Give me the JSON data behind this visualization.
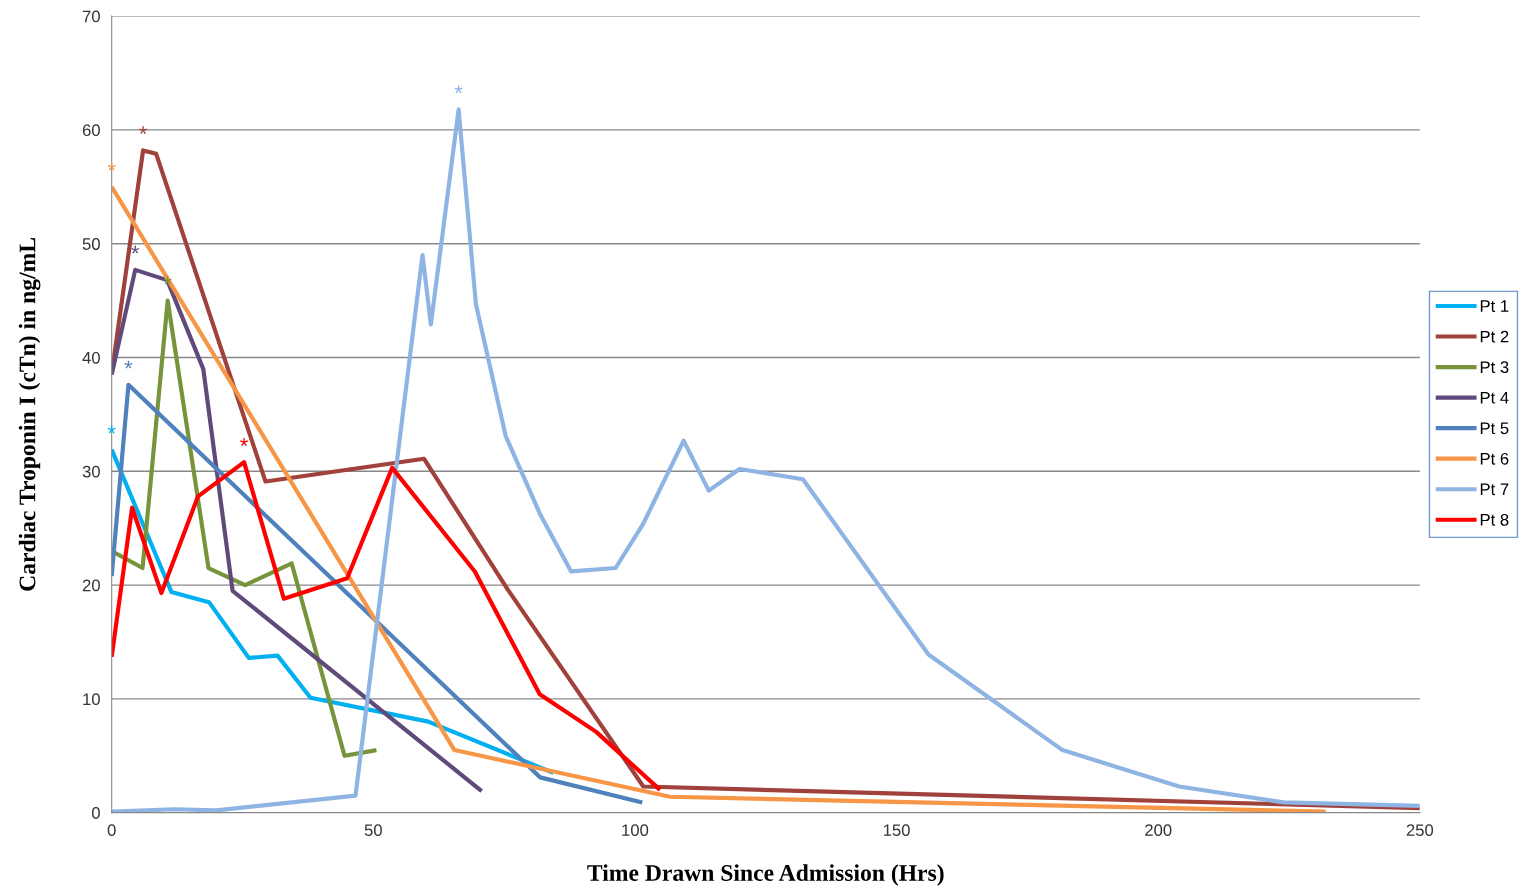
{
  "chart_data": {
    "type": "line",
    "xlabel": "Time Drawn Since Admission (Hrs)",
    "ylabel": "Cardiac Troponin I (cTn) in ng/mL",
    "xlim": [
      0,
      250
    ],
    "xticks": [
      0,
      50,
      100,
      150,
      200,
      250
    ],
    "ylim": [
      0,
      70
    ],
    "yticks": [
      0,
      10,
      20,
      30,
      40,
      50,
      60,
      70
    ],
    "grid": "y",
    "legend": "right",
    "marker": "none",
    "line_style": "solid",
    "series": [
      {
        "name": "Pt 1",
        "color": "#00b0f0",
        "x": [
          0,
          11.4,
          18.6,
          26.2,
          31.7,
          38,
          60.5,
          84.4
        ],
        "values": [
          31.9,
          19.4,
          18.5,
          13.6,
          13.8,
          10.1,
          8.0,
          3.5
        ]
      },
      {
        "name": "Pt 2",
        "color": "#a0413c",
        "x": [
          0,
          6.0,
          8.5,
          29.4,
          59.7,
          75.7,
          101.6,
          250
        ],
        "values": [
          38.6,
          58.2,
          57.9,
          29.1,
          31.1,
          19.6,
          2.3,
          0.4
        ]
      },
      {
        "name": "Pt 3",
        "color": "#77933c",
        "x": [
          0,
          5.9,
          10.7,
          18.5,
          25.5,
          34.4,
          44.5,
          50.6
        ],
        "values": [
          23.0,
          21.5,
          45.0,
          21.5,
          20.0,
          21.9,
          5.0,
          5.5
        ]
      },
      {
        "name": "Pt 4",
        "color": "#604a7b",
        "x": [
          0,
          4.5,
          10.6,
          17.5,
          23.1,
          70.7
        ],
        "values": [
          38.5,
          47.7,
          46.8,
          39.0,
          19.5,
          1.9
        ]
      },
      {
        "name": "Pt 5",
        "color": "#4f81bd",
        "x": [
          0,
          3.2,
          81.9,
          101.4
        ],
        "values": [
          20.8,
          37.6,
          3.1,
          0.9
        ]
      },
      {
        "name": "Pt 6",
        "color": "#f79646",
        "x": [
          0,
          65.5,
          106.7,
          232
        ],
        "values": [
          55.0,
          5.5,
          1.4,
          0.1
        ]
      },
      {
        "name": "Pt 7",
        "color": "#8eb4e3",
        "x": [
          0,
          12,
          20,
          46.6,
          59.4,
          61,
          66.3,
          69.6,
          75.3,
          81.8,
          87.8,
          96.3,
          101.6,
          109.3,
          114.1,
          120,
          132.1,
          156.1,
          181.7,
          204,
          224,
          250
        ],
        "values": [
          0.1,
          0.3,
          0.2,
          1.5,
          49.0,
          42.9,
          61.8,
          44.7,
          33.1,
          26.3,
          21.2,
          21.5,
          25.4,
          32.7,
          28.3,
          30.2,
          29.3,
          13.9,
          5.5,
          2.3,
          0.9,
          0.6
        ]
      },
      {
        "name": "Pt 8",
        "color": "#ff0000",
        "x": [
          0,
          3.9,
          9.5,
          16.5,
          25.3,
          32.9,
          45,
          53.6,
          69.4,
          81.8,
          92.6,
          104.8
        ],
        "values": [
          13.7,
          26.8,
          19.3,
          27.8,
          30.8,
          18.8,
          20.6,
          30.3,
          21.2,
          10.4,
          7.1,
          2.0
        ]
      }
    ],
    "annotations": [
      {
        "text": "*",
        "x": 0,
        "y": 31.9
      },
      {
        "text": "*",
        "x": 6.0,
        "y": 58.2
      },
      {
        "text": "*",
        "x": 10.7,
        "y": 45.0
      },
      {
        "text": "*",
        "x": 4.5,
        "y": 47.7
      },
      {
        "text": "*",
        "x": 3.2,
        "y": 37.6
      },
      {
        "text": "*",
        "x": 0,
        "y": 55.0
      },
      {
        "text": "*",
        "x": 66.3,
        "y": 61.8
      },
      {
        "text": "*",
        "x": 25.3,
        "y": 30.8
      }
    ]
  }
}
